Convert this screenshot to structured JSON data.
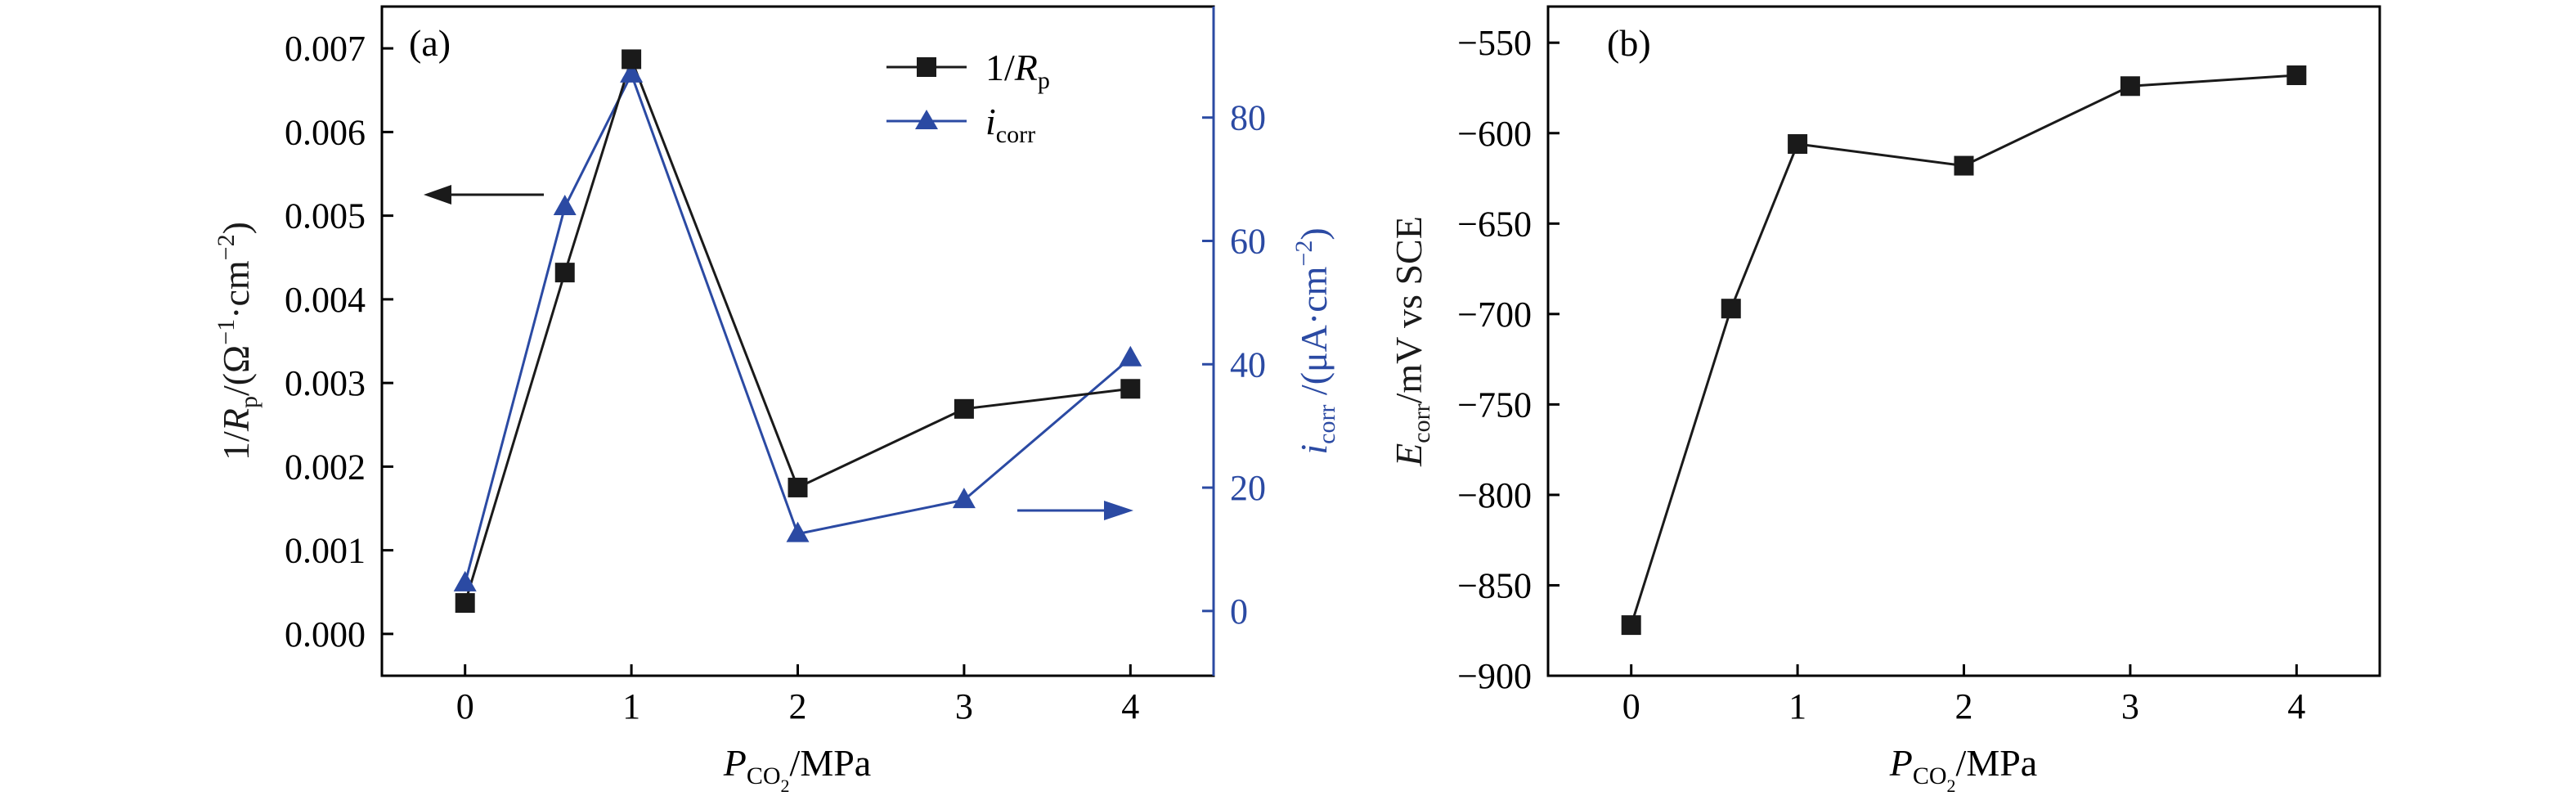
{
  "colors": {
    "black": "#1a1a1a",
    "blue": "#2b4aa3",
    "axis": "#000000"
  },
  "chart_data": [
    {
      "panel_label": "(a)",
      "type": "line",
      "x": [
        0,
        0.6,
        1,
        2,
        3,
        4
      ],
      "xlim": [
        -0.5,
        4.5
      ],
      "xticks": [
        0,
        1,
        2,
        3,
        4
      ],
      "xtick_labels": [
        "0",
        "1",
        "2",
        "3",
        "4"
      ],
      "xlabel": {
        "main": "P",
        "sub": "CO",
        "sub2": "2",
        "rest": "/MPa"
      },
      "ylabel_left": {
        "lead": "1/",
        "var": "R",
        "sub": "p",
        "rest": "/(Ω",
        "sup1": "−1",
        "mid": "·cm",
        "sup2": "−2",
        "close": ")"
      },
      "ylabel_right": {
        "var": "i",
        "sub": "corr",
        "rest": " /(μA·cm",
        "sup": "−2",
        "close": ")"
      },
      "ylim_left": [
        -0.0005,
        0.0075
      ],
      "yticks_left": [
        0,
        0.001,
        0.002,
        0.003,
        0.004,
        0.005,
        0.006,
        0.007
      ],
      "ytick_labels_left": [
        "0.000",
        "0.001",
        "0.002",
        "0.003",
        "0.004",
        "0.005",
        "0.006",
        "0.007"
      ],
      "ylim_right": [
        -10.5,
        98
      ],
      "yticks_right": [
        0,
        20,
        40,
        60,
        80
      ],
      "ytick_labels_right": [
        "0",
        "20",
        "40",
        "60",
        "80"
      ],
      "series": [
        {
          "name": "1/Rp",
          "legend": {
            "lead": "1/",
            "var": "R",
            "sub": "p"
          },
          "axis": "left",
          "marker": "square",
          "color": "#1a1a1a",
          "values": [
            0.00037,
            0.00432,
            0.00687,
            0.00175,
            0.00269,
            0.00293
          ]
        },
        {
          "name": "icorr",
          "legend": {
            "var": "i",
            "sub": "corr"
          },
          "axis": "right",
          "marker": "triangle",
          "color": "#2b4aa3",
          "values": [
            4.5,
            65.5,
            87,
            12.5,
            18,
            41
          ]
        }
      ],
      "legend_position": "top-right",
      "grid": false
    },
    {
      "panel_label": "(b)",
      "type": "line",
      "x": [
        0,
        0.6,
        1,
        2,
        3,
        4
      ],
      "xlim": [
        -0.5,
        4.5
      ],
      "xticks": [
        0,
        1,
        2,
        3,
        4
      ],
      "xtick_labels": [
        "0",
        "1",
        "2",
        "3",
        "4"
      ],
      "xlabel": {
        "main": "P",
        "sub": "CO",
        "sub2": "2",
        "rest": "/MPa"
      },
      "ylabel": {
        "var": "E",
        "sub": "corr",
        "rest": "/mV vs SCE"
      },
      "ylim": [
        -900,
        -530
      ],
      "yticks": [
        -900,
        -850,
        -800,
        -750,
        -700,
        -650,
        -600,
        -550
      ],
      "ytick_labels": [
        "−900",
        "−850",
        "−800",
        "−750",
        "−700",
        "−650",
        "−600",
        "−550"
      ],
      "series": [
        {
          "marker": "square",
          "color": "#1a1a1a",
          "values": [
            -872,
            -697,
            -606,
            -618,
            -574,
            -568
          ]
        }
      ],
      "grid": false
    }
  ]
}
